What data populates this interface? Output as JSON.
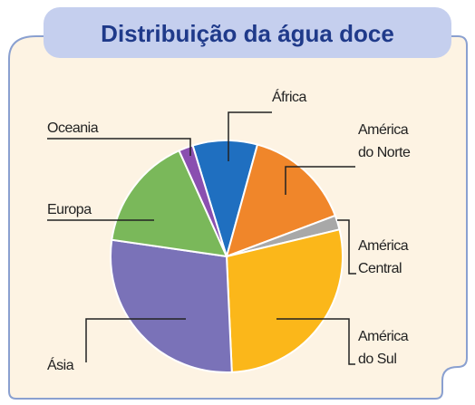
{
  "chart_data": {
    "type": "pie",
    "title": "Distribuição da água doce",
    "categories": [
      "África",
      "América do Norte",
      "América Central",
      "América do Sul",
      "Ásia",
      "Europa",
      "Oceania"
    ],
    "values": [
      9,
      15,
      2,
      28,
      28,
      16,
      2
    ],
    "colors": [
      "#1f6fc0",
      "#f0862a",
      "#a8a8a8",
      "#fbb71a",
      "#7a72b8",
      "#7ab85a",
      "#8a4fb0"
    ],
    "start_angle": -17
  }
}
